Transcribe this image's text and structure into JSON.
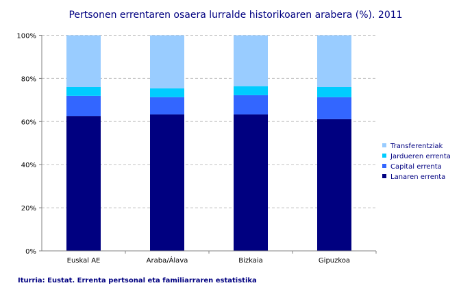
{
  "chart_data": {
    "type": "bar",
    "stacked": true,
    "title": "Pertsonen errentaren osaera lurralde historikoaren arabera (%). 2011",
    "source": "Iturria: Eustat. Errenta pertsonal eta familiarraren estatistika",
    "categories": [
      "Euskal AE",
      "Araba/Álava",
      "Bizkaia",
      "Gipuzkoa"
    ],
    "ylim": [
      0,
      100
    ],
    "yticks": [
      "0%",
      "20%",
      "40%",
      "60%",
      "80%",
      "100%"
    ],
    "grid": true,
    "legend_position": "right",
    "series": [
      {
        "name": "Lanaren errenta",
        "color": "#000080",
        "values": [
          62.6,
          63.3,
          63.3,
          61.1
        ]
      },
      {
        "name": "Capital errenta",
        "color": "#3366FF",
        "values": [
          9.3,
          8.0,
          8.9,
          10.2
        ]
      },
      {
        "name": "Jardueren errenta",
        "color": "#00CCFF",
        "values": [
          4.1,
          4.1,
          4.2,
          4.7
        ]
      },
      {
        "name": "Transferentziak",
        "color": "#99CCFF",
        "values": [
          24.0,
          24.6,
          23.6,
          24.0
        ]
      }
    ]
  }
}
